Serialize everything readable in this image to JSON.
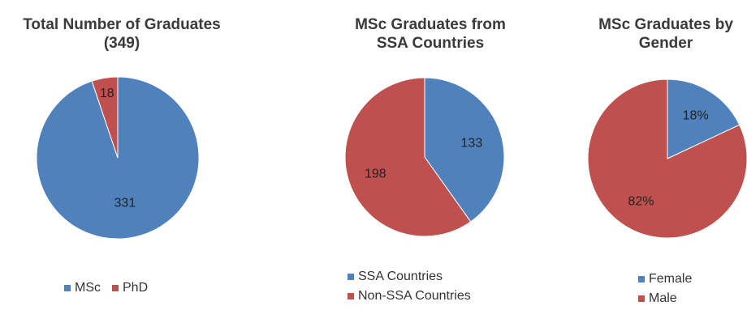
{
  "charts": [
    {
      "title_lines": [
        "Total Number of Graduates",
        "(349)"
      ]
    },
    {
      "title_lines": [
        "MSc Graduates from",
        "SSA Countries"
      ]
    },
    {
      "title_lines": [
        "MSc Graduates by",
        "Gender"
      ]
    }
  ],
  "colors": {
    "blue": "#4f81bd",
    "red": "#c0504d"
  },
  "chart_data": [
    {
      "type": "pie",
      "title": "Total Number of Graduates (349)",
      "slices": [
        {
          "label": "MSc",
          "value": 331,
          "display": "331",
          "color": "#4f81bd"
        },
        {
          "label": "PhD",
          "value": 18,
          "display": "18",
          "color": "#c0504d"
        }
      ],
      "legend": [
        "MSc",
        "PhD"
      ],
      "legend_position": "bottom"
    },
    {
      "type": "pie",
      "title": "MSc Graduates from SSA Countries",
      "slices": [
        {
          "label": "SSA Countries",
          "value": 133,
          "display": "133",
          "color": "#4f81bd"
        },
        {
          "label": "Non-SSA Countries",
          "value": 198,
          "display": "198",
          "color": "#c0504d"
        }
      ],
      "legend": [
        "SSA Countries",
        "Non-SSA Countries"
      ],
      "legend_position": "bottom"
    },
    {
      "type": "pie",
      "title": "MSc Graduates by Gender",
      "slices": [
        {
          "label": "Female",
          "value": 18,
          "display": "18%",
          "color": "#4f81bd"
        },
        {
          "label": "Male",
          "value": 82,
          "display": "82%",
          "color": "#c0504d"
        }
      ],
      "legend": [
        "Female",
        "Male"
      ],
      "legend_position": "bottom"
    }
  ]
}
